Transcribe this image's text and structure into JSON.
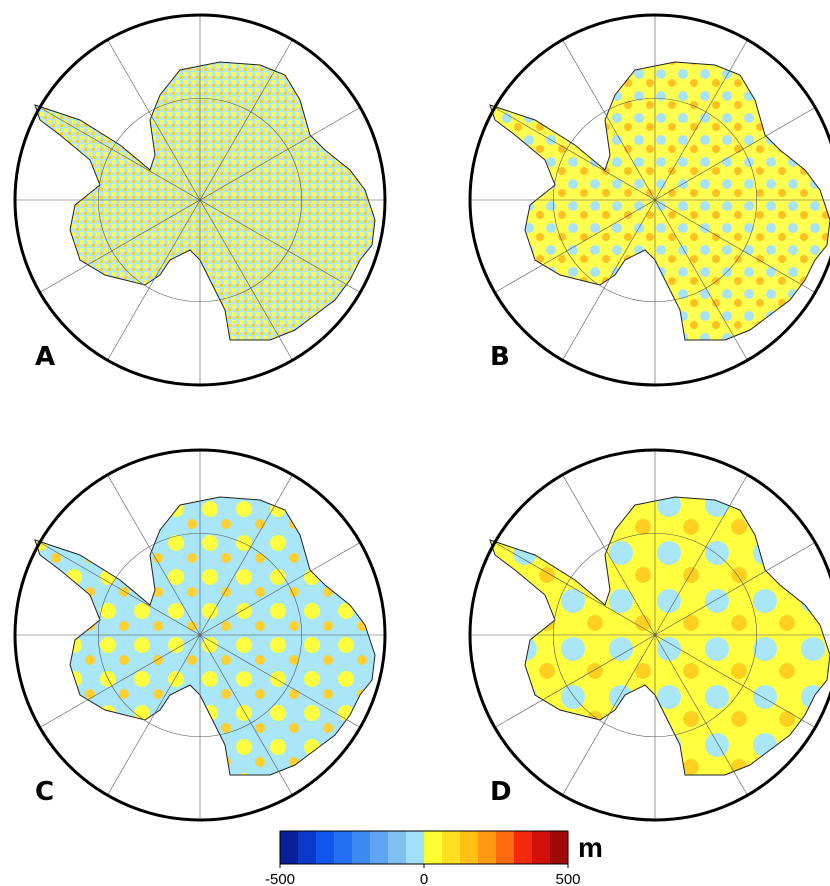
{
  "panels": [
    {
      "label": "A"
    },
    {
      "label": "B"
    },
    {
      "label": "C"
    },
    {
      "label": "D"
    }
  ],
  "colorbar": {
    "unit": "m",
    "min": -500,
    "max": 500,
    "ticks": [
      -500,
      0,
      500
    ],
    "colors": [
      "#08209a",
      "#0a38c8",
      "#0f55ee",
      "#2470f5",
      "#3f8af2",
      "#5ea4f0",
      "#7ec0f2",
      "#a0e0fa",
      "#ffff33",
      "#ffe020",
      "#ffc010",
      "#ff9a10",
      "#ff6a10",
      "#f52a0a",
      "#d4100a",
      "#a00808"
    ]
  }
}
